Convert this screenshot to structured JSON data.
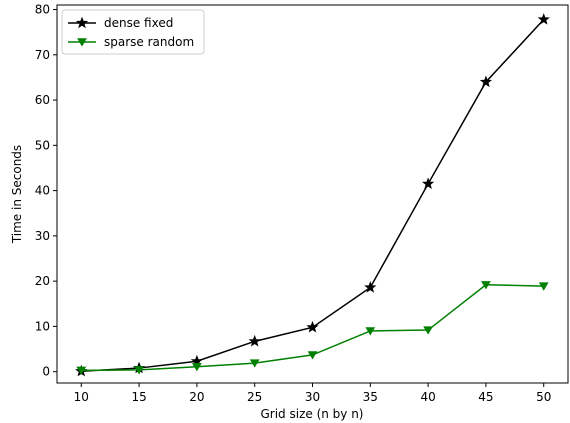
{
  "chart_data": {
    "type": "line",
    "title": "",
    "xlabel": "Grid size (n by n)",
    "ylabel": "Time in Seconds",
    "x": [
      10,
      15,
      20,
      25,
      30,
      35,
      40,
      45,
      50
    ],
    "xlim": [
      7.9,
      52.1
    ],
    "ylim": [
      -2.5,
      81
    ],
    "xticks": [
      10,
      15,
      20,
      25,
      30,
      35,
      40,
      45,
      50
    ],
    "yticks": [
      0,
      10,
      20,
      30,
      40,
      50,
      60,
      70,
      80
    ],
    "grid": false,
    "legend_position": "upper-left",
    "series": [
      {
        "name": "dense fixed",
        "color": "#000000",
        "marker": "star",
        "values": [
          0.1,
          0.8,
          2.3,
          6.7,
          9.8,
          18.6,
          41.5,
          64.0,
          77.8
        ]
      },
      {
        "name": "sparse random",
        "color": "#008000",
        "marker": "triangle-down",
        "values": [
          0.3,
          0.4,
          1.1,
          1.9,
          3.7,
          9.0,
          9.2,
          19.2,
          18.9
        ]
      }
    ]
  }
}
